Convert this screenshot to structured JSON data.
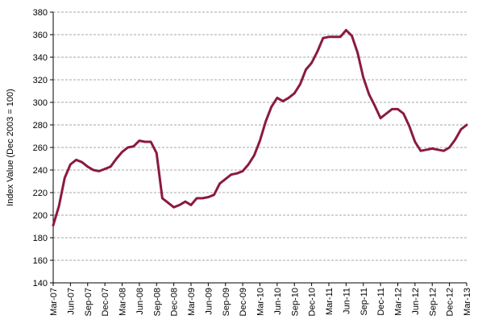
{
  "chart_data": {
    "type": "line",
    "title": "",
    "xlabel": "",
    "ylabel": "Index Value (Dec 2003 = 100)",
    "ylim": [
      140,
      380
    ],
    "yticks": [
      140,
      160,
      180,
      200,
      220,
      240,
      260,
      280,
      300,
      320,
      340,
      360,
      380
    ],
    "grid": "horizontal dashed",
    "legend": "none",
    "line_color": "#8B1A3F",
    "xtick_labels": [
      "Mar-07",
      "Jun-07",
      "Sep-07",
      "Dec-07",
      "Mar-08",
      "Jun-08",
      "Sep-08",
      "Dec-08",
      "Mar-09",
      "Jun-09",
      "Sep-09",
      "Dec-09",
      "Mar-10",
      "Jun-10",
      "Sep-10",
      "Dec-10",
      "Mar-11",
      "Jun-11",
      "Sep-11",
      "Dec-11",
      "Mar-12",
      "Jun-12",
      "Sep-12",
      "Dec-12",
      "Mar-13"
    ],
    "series": [
      {
        "name": "",
        "x": [
          "Mar-07",
          "Apr-07",
          "May-07",
          "Jun-07",
          "Jul-07",
          "Aug-07",
          "Sep-07",
          "Oct-07",
          "Nov-07",
          "Dec-07",
          "Jan-08",
          "Feb-08",
          "Mar-08",
          "Apr-08",
          "May-08",
          "Jun-08",
          "Jul-08",
          "Aug-08",
          "Sep-08",
          "Oct-08",
          "Nov-08",
          "Dec-08",
          "Jan-09",
          "Feb-09",
          "Mar-09",
          "Apr-09",
          "May-09",
          "Jun-09",
          "Jul-09",
          "Aug-09",
          "Sep-09",
          "Oct-09",
          "Nov-09",
          "Dec-09",
          "Jan-10",
          "Feb-10",
          "Mar-10",
          "Apr-10",
          "May-10",
          "Jun-10",
          "Jul-10",
          "Aug-10",
          "Sep-10",
          "Oct-10",
          "Nov-10",
          "Dec-10",
          "Jan-11",
          "Feb-11",
          "Mar-11",
          "Apr-11",
          "May-11",
          "Jun-11",
          "Jul-11",
          "Aug-11",
          "Sep-11",
          "Oct-11",
          "Nov-11",
          "Dec-11",
          "Jan-12",
          "Feb-12",
          "Mar-12",
          "Apr-12",
          "May-12",
          "Jun-12",
          "Jul-12",
          "Aug-12",
          "Sep-12",
          "Oct-12",
          "Nov-12",
          "Dec-12",
          "Jan-13",
          "Feb-13",
          "Mar-13"
        ],
        "values": [
          191,
          208,
          233,
          245,
          249,
          247,
          243,
          240,
          239,
          241,
          243,
          250,
          256,
          260,
          261,
          266,
          265,
          265,
          255,
          215,
          211,
          207,
          209,
          212,
          209,
          215,
          215,
          216,
          218,
          228,
          232,
          236,
          237,
          239,
          245,
          253,
          266,
          283,
          296,
          304,
          301,
          304,
          308,
          316,
          329,
          335,
          345,
          357,
          358,
          358,
          358,
          364,
          359,
          344,
          322,
          307,
          297,
          286,
          290,
          294,
          294,
          290,
          279,
          265,
          257,
          258,
          259,
          258,
          257,
          260,
          267,
          276,
          280
        ]
      }
    ]
  }
}
